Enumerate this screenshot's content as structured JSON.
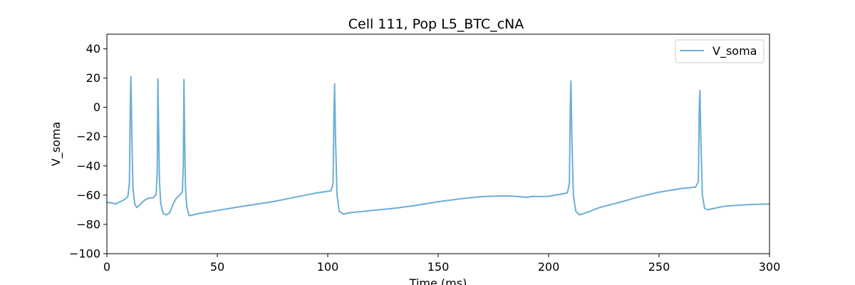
{
  "chart_data": {
    "type": "line",
    "title": "Cell 111, Pop L5_BTC_cNA",
    "xlabel": "Time (ms)",
    "ylabel": "V_soma",
    "xlim": [
      0,
      300
    ],
    "ylim": [
      -100,
      50
    ],
    "x_ticks": [
      0,
      50,
      100,
      150,
      200,
      250,
      300
    ],
    "y_ticks": [
      -100,
      -80,
      -60,
      -40,
      -20,
      0,
      20,
      40
    ],
    "x_tick_labels": [
      "0",
      "50",
      "100",
      "150",
      "200",
      "250",
      "300"
    ],
    "y_tick_labels": [
      "−100",
      "−80",
      "−60",
      "−40",
      "−20",
      "0",
      "20",
      "40"
    ],
    "grid": false,
    "legend_position": "top-right",
    "series": [
      {
        "name": "V_soma",
        "color": "#6baed6",
        "x": [
          0,
          2,
          4,
          6,
          8,
          9.5,
          10.2,
          10.6,
          10.9,
          11.3,
          11.8,
          12.6,
          13.5,
          15,
          17,
          19,
          21,
          22.3,
          22.8,
          23.1,
          23.4,
          23.8,
          24.4,
          25.5,
          27,
          28.5,
          30,
          31.5,
          33,
          34.2,
          34.6,
          34.9,
          35.2,
          35.6,
          36.2,
          37.2,
          39,
          42,
          50,
          60,
          75,
          85,
          95,
          101.5,
          102.4,
          102.8,
          103.1,
          103.5,
          104.2,
          105.2,
          107,
          110,
          120,
          130,
          140,
          150,
          160,
          170,
          180,
          185,
          188,
          190,
          193,
          195,
          200,
          205,
          208.5,
          209.4,
          209.8,
          210.1,
          210.5,
          211.2,
          212.3,
          214,
          218,
          223,
          228,
          232,
          240,
          250,
          260,
          266.5,
          267.8,
          268.2,
          268.5,
          268.9,
          269.6,
          270.6,
          272,
          275,
          280,
          290,
          300
        ],
        "values": [
          -65,
          -65.3,
          -66,
          -64.5,
          -63,
          -61,
          -52,
          0,
          21,
          -20,
          -55,
          -66,
          -68.5,
          -66.5,
          -63.5,
          -62,
          -61.8,
          -59.5,
          -45,
          19.5,
          -10,
          -50,
          -66,
          -72.5,
          -73.5,
          -72,
          -66,
          -62,
          -60,
          -57.5,
          -40,
          19,
          -20,
          -55,
          -68,
          -74,
          -73.5,
          -72.5,
          -70.5,
          -68,
          -64.5,
          -61.5,
          -58.5,
          -57,
          -52,
          -5,
          16,
          -20,
          -60,
          -71,
          -73,
          -72,
          -70.5,
          -69,
          -67,
          -64.5,
          -62.5,
          -61,
          -60.5,
          -60.8,
          -61.2,
          -61.5,
          -60.8,
          -61,
          -60.8,
          -59.5,
          -58.5,
          -52,
          0,
          18,
          -20,
          -60,
          -71,
          -73.5,
          -71.5,
          -68.5,
          -66.5,
          -65,
          -61.5,
          -58,
          -55.5,
          -54.5,
          -51,
          0,
          11.5,
          -20,
          -60,
          -69,
          -70,
          -69,
          -67.5,
          -66.5,
          -66
        ]
      }
    ]
  }
}
